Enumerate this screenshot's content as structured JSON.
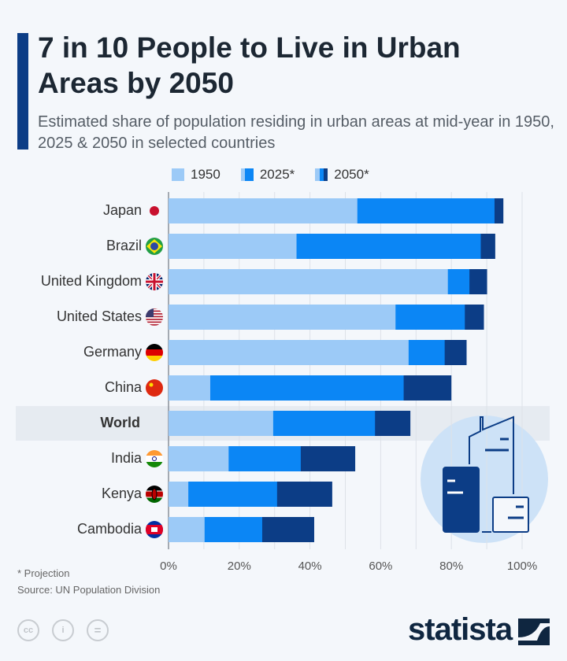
{
  "title": "7 in 10 People to Live in Urban Areas by 2050",
  "subtitle": "Estimated share of population residing in urban areas at mid-year in 1950, 2025 & 2050 in selected countries",
  "colors": {
    "y1950": "#9ccaf7",
    "y2025": "#0b86f5",
    "y2050": "#0c3d86",
    "accent": "#0c3d86",
    "highlight": "#e6ebf1"
  },
  "chart_data": {
    "type": "bar",
    "orientation": "horizontal",
    "stacked_overlay": true,
    "categories": [
      "Japan",
      "Brazil",
      "United Kingdom",
      "United States",
      "Germany",
      "China",
      "World",
      "India",
      "Kenya",
      "Cambodia"
    ],
    "highlighted_category": "World",
    "series": [
      {
        "name": "1950",
        "values": [
          53.4,
          36.2,
          79.0,
          64.2,
          67.9,
          11.8,
          29.6,
          17.0,
          5.6,
          10.2
        ]
      },
      {
        "name": "2025*",
        "values": [
          92.2,
          88.3,
          85.1,
          83.8,
          78.1,
          66.5,
          58.4,
          37.4,
          30.7,
          26.5
        ]
      },
      {
        "name": "2050*",
        "values": [
          94.7,
          92.4,
          90.1,
          89.2,
          84.3,
          80.0,
          68.4,
          52.8,
          46.3,
          41.2
        ]
      }
    ],
    "xlim": [
      0,
      100
    ],
    "xticks": [
      "0%",
      "20%",
      "40%",
      "60%",
      "80%",
      "100%"
    ],
    "grid": true,
    "legend_position": "top"
  },
  "flags": [
    "japan-flag-icon",
    "brazil-flag-icon",
    "uk-flag-icon",
    "us-flag-icon",
    "germany-flag-icon",
    "china-flag-icon",
    "",
    "india-flag-icon",
    "kenya-flag-icon",
    "cambodia-flag-icon"
  ],
  "footer": {
    "note": "* Projection",
    "source": "Source: UN Population Division",
    "license_icons": [
      "cc",
      "by",
      "nd"
    ],
    "cc_text": "cc",
    "by_text": "i",
    "nd_text": "="
  },
  "brand": "statista"
}
